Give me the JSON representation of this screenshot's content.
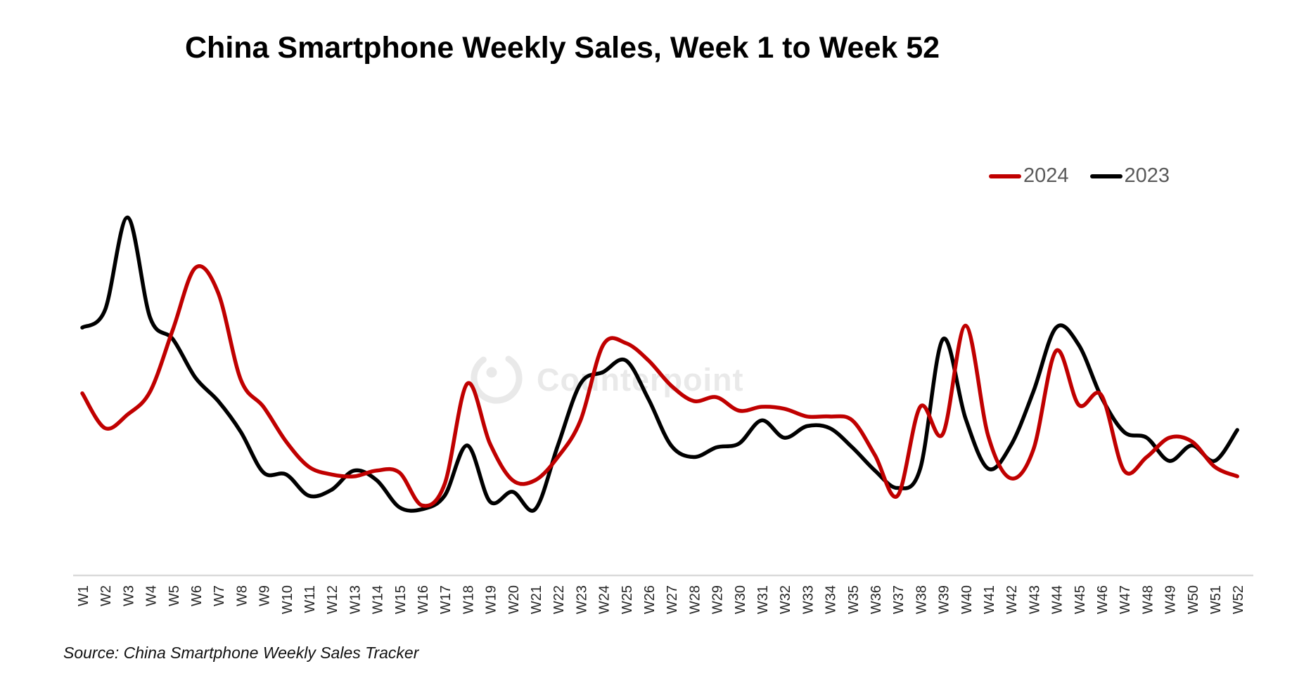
{
  "title": "China Smartphone Weekly Sales, Week 1 to Week 52",
  "source_note": "Source: China Smartphone Weekly Sales Tracker",
  "watermark": {
    "text": "Counterpoint"
  },
  "legend": {
    "items": [
      {
        "label": "2024",
        "color": "#c00000"
      },
      {
        "label": "2023",
        "color": "#000000"
      }
    ]
  },
  "chart_data": {
    "type": "line",
    "title": "China Smartphone Weekly Sales, Week 1 to Week 52",
    "categories": [
      "W1",
      "W2",
      "W3",
      "W4",
      "W5",
      "W6",
      "W7",
      "W8",
      "W9",
      "W10",
      "W11",
      "W12",
      "W13",
      "W14",
      "W15",
      "W16",
      "W17",
      "W18",
      "W19",
      "W20",
      "W21",
      "W22",
      "W23",
      "W24",
      "W25",
      "W26",
      "W27",
      "W28",
      "W29",
      "W30",
      "W31",
      "W32",
      "W33",
      "W34",
      "W35",
      "W36",
      "W37",
      "W38",
      "W39",
      "W40",
      "W41",
      "W42",
      "W43",
      "W44",
      "W45",
      "W46",
      "W47",
      "W48",
      "W49",
      "W50",
      "W51",
      "W52"
    ],
    "series": [
      {
        "name": "2024",
        "color": "#c00000",
        "values": [
          45.5,
          36.5,
          40,
          46,
          62,
          78,
          71.5,
          49,
          42,
          33,
          26.5,
          24.5,
          24,
          25.5,
          25,
          16.5,
          22,
          48,
          32.5,
          23,
          23,
          29,
          38.5,
          58,
          58.5,
          54,
          47.5,
          43.5,
          44.5,
          41,
          42,
          41.5,
          39.5,
          39.5,
          38.5,
          29.5,
          19,
          42,
          35,
          63,
          34.5,
          23.5,
          31,
          56.5,
          42.5,
          45,
          25.5,
          29,
          34,
          33,
          26.5,
          24
        ]
      },
      {
        "name": "2023",
        "color": "#000000",
        "values": [
          62.5,
          67,
          91,
          65,
          59.5,
          49.5,
          43.5,
          35.5,
          25,
          24.5,
          19,
          20.5,
          25.5,
          23,
          16,
          15.5,
          19,
          32,
          17.5,
          20,
          15.5,
          32,
          48,
          51,
          54,
          44,
          32,
          29,
          31.5,
          32.5,
          38.5,
          34,
          37,
          36.5,
          31.5,
          25.5,
          21,
          26,
          59.5,
          39,
          26,
          32,
          46,
          62.5,
          58,
          44.5,
          35.5,
          34,
          28,
          32,
          28,
          36
        ]
      }
    ],
    "xlabel": "",
    "ylabel": "",
    "ylim": [
      0,
      100
    ],
    "y_axis_visible": false,
    "grid": false,
    "smoothed_lines": true,
    "x_tick_rotation_deg": 90,
    "legend_position": "top-right",
    "values_note": "no y-axis shown in chart; values are index units estimated from line positions"
  }
}
